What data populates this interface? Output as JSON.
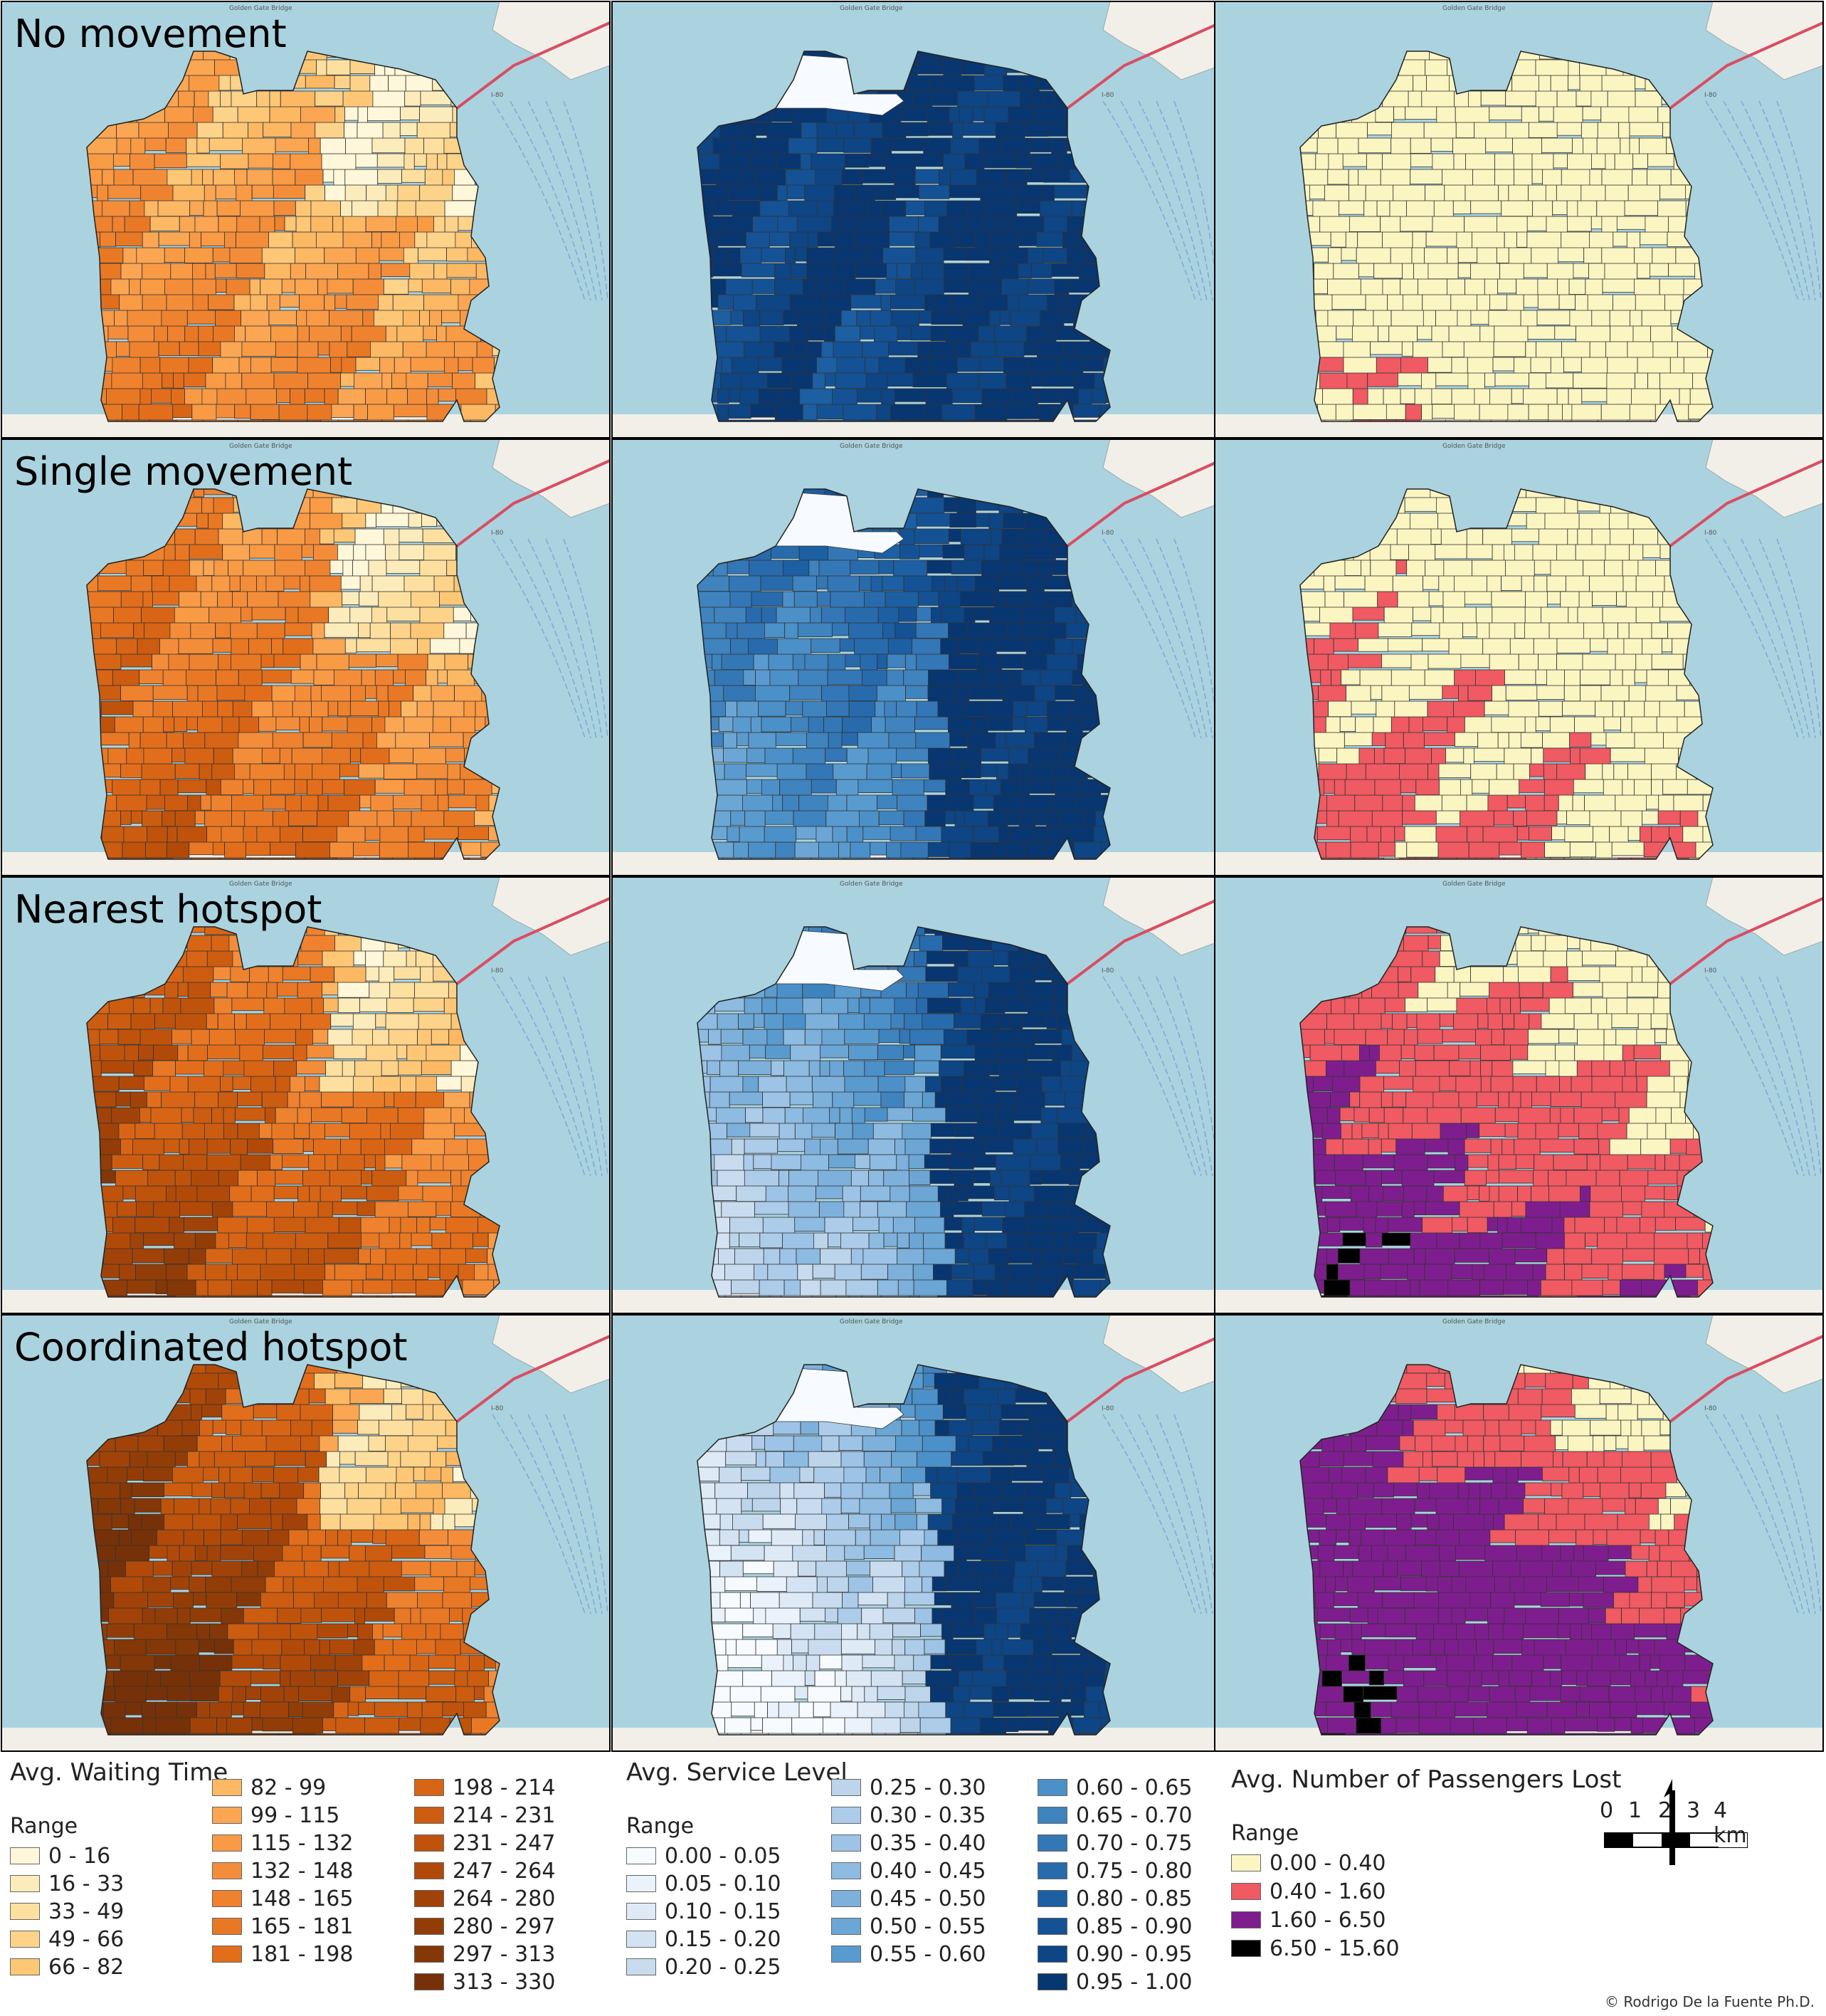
{
  "rows": [
    {
      "label": "No movement",
      "key": "none"
    },
    {
      "label": "Single movement",
      "key": "single"
    },
    {
      "label": "Nearest hotspot",
      "key": "nearest"
    },
    {
      "label": "Coordinated hotspot",
      "key": "coord"
    }
  ],
  "map_labels": {
    "bridge": "Golden Gate Bridge",
    "highway": "I-80"
  },
  "colors": {
    "water": "#aad3df",
    "land_outside": "#f2efe9",
    "boundary": "#333333",
    "waiting": [
      "#fff7d9",
      "#fdecbb",
      "#fde0a0",
      "#fdd38a",
      "#fdc776",
      "#fdb863",
      "#fba653",
      "#f99a45",
      "#f48d3a",
      "#ef822e",
      "#e97824",
      "#e26e1c",
      "#d86515",
      "#cc5c10",
      "#bf530c",
      "#b14a09",
      "#a14308",
      "#923d07",
      "#843707",
      "#773108"
    ],
    "service": [
      "#f7fbff",
      "#eaf2fb",
      "#dfeaf7",
      "#d4e3f3",
      "#c9dcef",
      "#bcd5ea",
      "#acccea",
      "#9dc3e6",
      "#8dbbe1",
      "#7db1dc",
      "#6ba6d5",
      "#599bcf",
      "#4b90c8",
      "#3f83bf",
      "#3377b6",
      "#276bad",
      "#1c5fa2",
      "#145295",
      "#0d4585",
      "#083670"
    ],
    "lost": [
      "#fbf5c2",
      "#ef5a63",
      "#7e1e8e",
      "#000000"
    ]
  },
  "legends": {
    "waiting": {
      "title": "Avg. Waiting Time",
      "sub": "Range",
      "items": [
        "0 - 16",
        "16 - 33",
        "33 - 49",
        "49 - 66",
        "66 - 82",
        "82 - 99",
        "99 - 115",
        "115 - 132",
        "132 - 148",
        "148 - 165",
        "165 - 181",
        "181 - 198",
        "198 - 214",
        "214 - 231",
        "231 - 247",
        "247 - 264",
        "264 - 280",
        "280 - 297",
        "297 - 313",
        "313 - 330"
      ]
    },
    "service": {
      "title": "Avg. Service Level",
      "sub": "Range",
      "items": [
        "0.00 - 0.05",
        "0.05 - 0.10",
        "0.10 - 0.15",
        "0.15 - 0.20",
        "0.20 - 0.25",
        "0.25 - 0.30",
        "0.30 - 0.35",
        "0.35 - 0.40",
        "0.40 - 0.45",
        "0.45 - 0.50",
        "0.50 - 0.55",
        "0.55 - 0.60",
        "0.60 - 0.65",
        "0.65 - 0.70",
        "0.70 - 0.75",
        "0.75 - 0.80",
        "0.80 - 0.85",
        "0.85 - 0.90",
        "0.90 - 0.95",
        "0.95 - 1.00"
      ]
    },
    "lost": {
      "title": "Avg. Number of Passengers Lost",
      "sub": "Range",
      "items": [
        "0.00 - 0.40",
        "0.40 - 1.60",
        "1.60 - 6.50",
        "6.50 - 15.60"
      ]
    }
  },
  "scale": {
    "ticks": [
      "0",
      "1",
      "2",
      "3",
      "4 km"
    ]
  },
  "north_arrow": "north-arrow",
  "credit": "© Rodrigo De la Fuente Ph.D."
}
